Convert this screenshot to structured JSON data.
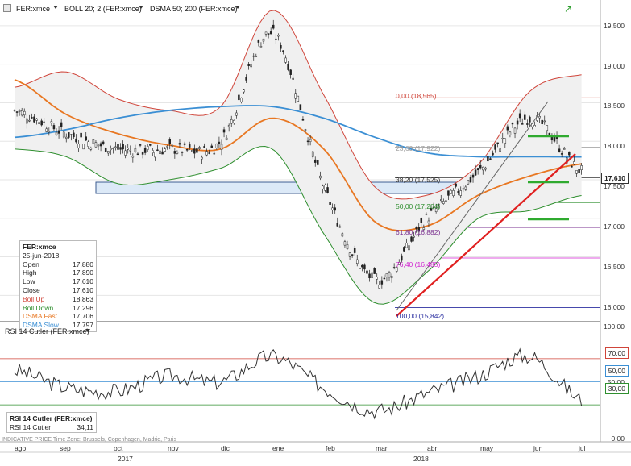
{
  "toolbar": {
    "symbol": "FER:xmce",
    "boll": "BOLL 20; 2 (FER:xmce)",
    "dsma": "DSMA 50; 200 (FER:xmce)"
  },
  "price_axis": [
    "19,500",
    "19,000",
    "18,500",
    "18,000",
    "17,500",
    "17,000",
    "16,500",
    "16,000"
  ],
  "last_price_badge": "17,610",
  "fibonacci": [
    {
      "label": "0,00 (18,565)",
      "color": "#d0453a"
    },
    {
      "label": "23,60 (17,922)",
      "color": "#999999"
    },
    {
      "label": "38,20 (17,525)",
      "color": "#333333"
    },
    {
      "label": "50,00 (17,204)",
      "color": "#2f8f2f"
    },
    {
      "label": "61,80 (16,882)",
      "color": "#7a2f8f"
    },
    {
      "label": "76,40 (16,485)",
      "color": "#d01fd0"
    },
    {
      "label": "100,00 (15,842)",
      "color": "#2b2fa0"
    }
  ],
  "info": {
    "symbol": "FER:xmce",
    "date": "25-jun-2018",
    "rows": [
      {
        "label": "Open",
        "value": "17,880",
        "color": "#222"
      },
      {
        "label": "High",
        "value": "17,890",
        "color": "#222"
      },
      {
        "label": "Low",
        "value": "17,610",
        "color": "#222"
      },
      {
        "label": "Close",
        "value": "17,610",
        "color": "#222"
      },
      {
        "label": "Boll Up",
        "value": "18,863",
        "color": "#d0453a"
      },
      {
        "label": "Boll Down",
        "value": "17,296",
        "color": "#2f8f2f"
      },
      {
        "label": "DSMA Fast",
        "value": "17,706",
        "color": "#e87722"
      },
      {
        "label": "DSMA Slow",
        "value": "17,797",
        "color": "#3b8fd4"
      }
    ]
  },
  "rsi": {
    "title": "RSI 14 Cutler (FER:xmce)",
    "box_title": "RSI 14 Cutler (FER:xmce)",
    "box_label": "RSI 14 Cutler",
    "box_value": "34,11",
    "axis": [
      "100,00",
      "50,00",
      "0,00"
    ],
    "badges": [
      "70,00",
      "50,00",
      "30,00"
    ]
  },
  "footer": "INDICATIVE PRICE   Time Zone: Brussels, Copenhagen, Madrid, Paris",
  "x_axis": [
    "ago",
    "sep",
    "oct",
    "nov",
    "dic",
    "ene",
    "feb",
    "mar",
    "abr",
    "may",
    "jun",
    "jul"
  ],
  "years": [
    "2017",
    "2018"
  ],
  "chart_data": {
    "type": "line",
    "title": "",
    "price_range": [
      15700,
      19750
    ],
    "x": [
      "ago",
      "sep",
      "oct",
      "nov",
      "dic",
      "ene",
      "feb",
      "mar",
      "abr",
      "may",
      "jun",
      "jul"
    ],
    "series": [
      {
        "name": "Close",
        "color": "#222222",
        "values": [
          18400,
          18100,
          17900,
          17900,
          18000,
          19400,
          17400,
          16200,
          17000,
          17600,
          18300,
          17610
        ]
      },
      {
        "name": "Boll Up",
        "color": "#d0453a",
        "values": [
          18700,
          18900,
          18550,
          18400,
          18450,
          19700,
          18600,
          17400,
          17300,
          17700,
          18650,
          18863
        ]
      },
      {
        "name": "Boll Down",
        "color": "#2f8f2f",
        "values": [
          17900,
          17800,
          17450,
          17500,
          17650,
          17900,
          16800,
          15900,
          16300,
          17000,
          17100,
          17296
        ]
      },
      {
        "name": "DSMA Fast",
        "color": "#e87722",
        "values": [
          18800,
          18350,
          18100,
          17950,
          17900,
          18300,
          17900,
          16950,
          16900,
          17300,
          17550,
          17706
        ]
      },
      {
        "name": "DSMA Slow",
        "color": "#3b8fd4",
        "values": [
          18050,
          18150,
          18300,
          18400,
          18450,
          18450,
          18300,
          18050,
          17850,
          17800,
          17800,
          17797
        ]
      }
    ],
    "horizontal_lines": [
      18565,
      17922,
      17525,
      17204,
      16882,
      16485,
      15842
    ],
    "rsi": {
      "ylim": [
        0,
        100
      ],
      "levels": [
        70,
        50,
        30
      ],
      "values": [
        60,
        45,
        42,
        55,
        50,
        72,
        45,
        25,
        40,
        55,
        72,
        34.11
      ]
    }
  }
}
